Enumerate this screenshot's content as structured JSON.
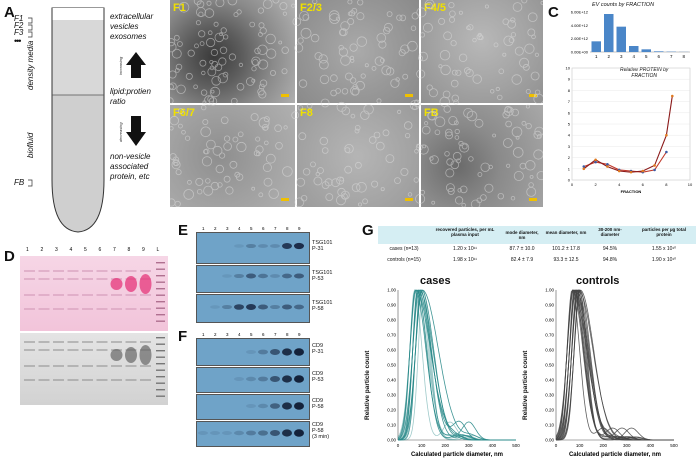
{
  "panels": {
    "A": "A",
    "B": "B",
    "C": "C",
    "D": "D",
    "E": "E",
    "F": "F",
    "G": "G"
  },
  "panelA": {
    "fractions": [
      "F1",
      "F2",
      "F3"
    ],
    "ellipsis": "•••",
    "fb": "FB",
    "density_media": "density media",
    "biofluid": "biofluid",
    "label_top": [
      "extracellular",
      "vesicles",
      "exosomes"
    ],
    "increasing": "increasing",
    "middle": [
      "lipid:protien",
      "ratio"
    ],
    "decreasing": "decreasing",
    "label_bottom": [
      "non-vesicle",
      "associated",
      "protein, etc"
    ]
  },
  "panelB": {
    "labels": [
      "F1",
      "F2/3",
      "F4/5",
      "F6/7",
      "F8",
      "FB"
    ]
  },
  "panelC": {
    "ev_title": "EV counts by FRACTION",
    "ev_yticks": [
      "6.00E+12",
      "4.00E+12",
      "2.00E+12",
      "0.00E+00"
    ],
    "ev_xticks": [
      "1",
      "2",
      "3",
      "4",
      "5",
      "6",
      "7",
      "8"
    ],
    "prot_title": [
      "Relative PROTEIN by",
      "FRACTION"
    ],
    "prot_yticks": [
      "10",
      "9",
      "8",
      "7",
      "6",
      "5",
      "4",
      "3",
      "2",
      "1",
      "0"
    ],
    "prot_xticks": [
      "0",
      "2",
      "4",
      "6",
      "8",
      "10"
    ],
    "xlabel": "FRACTION"
  },
  "chart_data": [
    {
      "type": "bar",
      "title": "EV counts by FRACTION",
      "categories": [
        "1",
        "2",
        "3",
        "4",
        "5",
        "6",
        "7",
        "8"
      ],
      "values": [
        1600000000000.0,
        5700000000000.0,
        3800000000000.0,
        900000000000.0,
        400000000000.0,
        100000000000.0,
        50000000000.0,
        20000000000.0
      ],
      "ylim": [
        0,
        6000000000000.0
      ]
    },
    {
      "type": "line",
      "title": "Relative PROTEIN by FRACTION",
      "xlabel": "FRACTION",
      "ylim": [
        0,
        10
      ],
      "xlim": [
        0,
        10
      ],
      "series": [
        {
          "x": [
            1,
            2,
            3,
            4,
            5,
            6,
            7,
            8
          ],
          "y": [
            1.2,
            1.6,
            1.4,
            0.9,
            0.8,
            0.7,
            0.9,
            2.5
          ]
        },
        {
          "x": [
            1,
            2,
            3,
            4,
            5,
            6,
            7,
            8,
            8.5
          ],
          "y": [
            1.0,
            1.8,
            1.2,
            0.8,
            0.7,
            0.8,
            1.3,
            4.0,
            7.5
          ]
        }
      ]
    },
    {
      "type": "line",
      "title": "cases",
      "xlabel": "Calculated particle diameter, nm",
      "ylabel": "Relative particle count",
      "xlim": [
        0,
        500
      ],
      "ylim": [
        0,
        1.0
      ]
    },
    {
      "type": "line",
      "title": "controls",
      "xlabel": "Calculated particle diameter, nm",
      "ylabel": "Relative particle count",
      "xlim": [
        0,
        500
      ],
      "ylim": [
        0,
        1.0
      ]
    }
  ],
  "panelD": {
    "lanes": [
      "1",
      "2",
      "3",
      "4",
      "5",
      "6",
      "7",
      "8",
      "9",
      "L"
    ]
  },
  "panelE": {
    "lanes": [
      "1",
      "2",
      "3",
      "4",
      "5",
      "6",
      "7",
      "8",
      "9"
    ],
    "blots": [
      [
        "TSG101",
        "P-31"
      ],
      [
        "TSG101",
        "P-53"
      ],
      [
        "TSG101",
        "P-58"
      ]
    ]
  },
  "panelF": {
    "lanes": [
      "1",
      "2",
      "3",
      "4",
      "5",
      "6",
      "7",
      "8",
      "9"
    ],
    "blots": [
      [
        "CD9",
        "P-31"
      ],
      [
        "CD9",
        "P-53"
      ],
      [
        "CD9",
        "P-58"
      ],
      [
        "CD9",
        "P-58",
        "(3 min)"
      ]
    ]
  },
  "panelG": {
    "headers": [
      "",
      "recovered particles, per mL plasma input",
      "mode diameter, nm",
      "mean diameter, nm",
      "30-200 nm-diameter",
      "particles per µg total protein"
    ],
    "rows": [
      [
        "cases (n=13)",
        "1.20 x 10¹¹",
        "87.7 ± 10.0",
        "101.2 ± 17.8",
        "94.5%",
        "1.55 x 10¹⁰"
      ],
      [
        "controls (n=15)",
        "1.98 x 10¹¹",
        "82.4 ± 7.9",
        "93.3 ± 12.5",
        "94.8%",
        "1.90 x 10¹⁰"
      ]
    ],
    "cases_title": "cases",
    "controls_title": "controls",
    "ylabel": "Relative particle count",
    "xlabel": "Calculated particle diameter, nm",
    "yticks": [
      "0.00",
      "0.10",
      "0.20",
      "0.30",
      "0.40",
      "0.50",
      "0.60",
      "0.70",
      "0.80",
      "0.90",
      "1.00"
    ],
    "xticks": [
      "0",
      "100",
      "200",
      "300",
      "400",
      "500"
    ],
    "colors": {
      "cases": "#2a8a8a",
      "controls": "#444444"
    }
  }
}
